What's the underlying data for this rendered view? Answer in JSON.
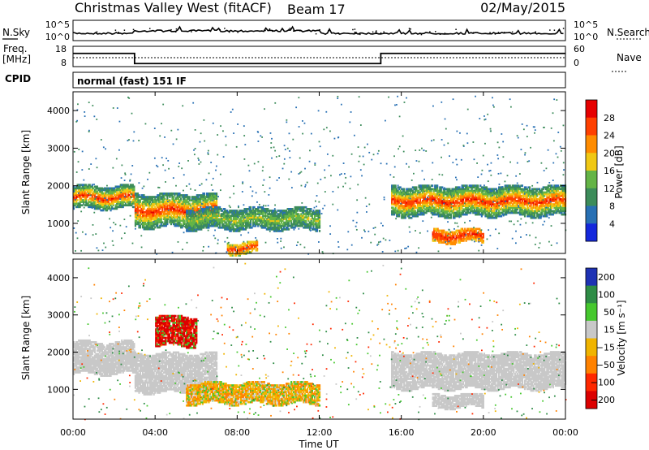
{
  "header": {
    "station": "Christmas Valley West (fitACF)",
    "beam": "Beam 17",
    "date": "02/May/2015"
  },
  "noise_panel": {
    "left_label": "N.Sky",
    "right_label": "N.Search",
    "left_ticks": [
      "10^5",
      "10^0"
    ],
    "right_ticks": [
      "10^5",
      "10^0"
    ]
  },
  "freq_panel": {
    "left_label_1": "Freq.",
    "left_label_2": "[MHz]",
    "right_label": "Nave",
    "left_ticks": [
      "18",
      "8"
    ],
    "right_ticks": [
      "60",
      "0"
    ],
    "freq_segments": [
      {
        "t0": 0,
        "t1": 3,
        "mhz": 14.5
      },
      {
        "t0": 3,
        "t1": 15,
        "mhz": 9.5
      },
      {
        "t0": 15,
        "t1": 24,
        "mhz": 14.5
      }
    ]
  },
  "cpid": {
    "label": "CPID",
    "mode": "normal (fast) 151 IF"
  },
  "power_panel": {
    "ylabel": "Slant Range [km]",
    "yticks": [
      "1000",
      "2000",
      "3000",
      "4000"
    ],
    "colorbar_label": "Power [dB]",
    "colorbar_ticks": [
      "4",
      "8",
      "12",
      "16",
      "20",
      "24",
      "28"
    ],
    "colors": [
      "#1428dc",
      "#2870b4",
      "#3c8c5a",
      "#64b446",
      "#f0c814",
      "#ff8c00",
      "#ff4000",
      "#e60000"
    ]
  },
  "velocity_panel": {
    "ylabel": "Slant Range [km]",
    "yticks": [
      "1000",
      "2000",
      "3000",
      "4000"
    ],
    "colorbar_label": "Velocity [m s⁻¹]",
    "colorbar_ticks": [
      "200",
      "100",
      "50",
      "15",
      "−15",
      "−50",
      "−100",
      "−200"
    ],
    "colors": [
      "#1e32b4",
      "#2e8c46",
      "#46c82e",
      "#c8c8c8",
      "#f0b400",
      "#ff8200",
      "#ff2800",
      "#dc0000"
    ]
  },
  "x_axis": {
    "ticks": [
      "00:00",
      "04:00",
      "08:00",
      "12:00",
      "16:00",
      "20:00",
      "00:00"
    ],
    "label": "Time UT"
  },
  "chart_data": {
    "type": "heatmap",
    "xlim": [
      0,
      24
    ],
    "ylim": [
      200,
      4500
    ],
    "power_blobs": [
      {
        "t0": 0,
        "t1": 3,
        "r0": 1450,
        "r1": 1900,
        "core": 28,
        "edge": 8
      },
      {
        "t0": 3,
        "t1": 7,
        "r0": 950,
        "r1": 1700,
        "core": 28,
        "edge": 8
      },
      {
        "t0": 5.5,
        "t1": 12,
        "r0": 900,
        "r1": 1300,
        "core": 16,
        "edge": 8
      },
      {
        "t0": 7.5,
        "t1": 9,
        "r0": 250,
        "r1": 400,
        "core": 28,
        "edge": 16
      },
      {
        "t0": 15.5,
        "t1": 24,
        "r0": 1250,
        "r1": 1900,
        "core": 28,
        "edge": 8
      },
      {
        "t0": 17.5,
        "t1": 20,
        "r0": 550,
        "r1": 750,
        "core": 28,
        "edge": 20
      }
    ],
    "velocity_blobs": [
      {
        "t0": 0,
        "t1": 3,
        "r0": 1450,
        "r1": 2200,
        "v": 0
      },
      {
        "t0": 3,
        "t1": 7,
        "r0": 950,
        "r1": 1900,
        "v": 0
      },
      {
        "t0": 5.5,
        "t1": 12,
        "r0": 650,
        "r1": 1100,
        "v": -40
      },
      {
        "t0": 15.5,
        "t1": 24,
        "r0": 1050,
        "r1": 1900,
        "v": 0
      },
      {
        "t0": 4,
        "t1": 6,
        "r0": 2200,
        "r1": 2900,
        "v": -220
      },
      {
        "t0": 17.5,
        "t1": 20,
        "r0": 550,
        "r1": 800,
        "v": 0
      }
    ]
  }
}
